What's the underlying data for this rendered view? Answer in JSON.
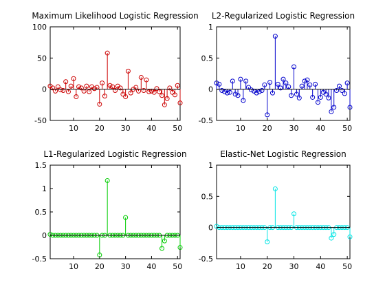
{
  "chart_data": [
    {
      "type": "stem",
      "title": "Maximum Likelihood Logistic Regression",
      "xlabel": "",
      "ylabel": "",
      "xlim": [
        1,
        51
      ],
      "ylim": [
        -50,
        100
      ],
      "xticks": [
        10,
        20,
        30,
        40,
        50
      ],
      "yticks": [
        -50,
        0,
        50,
        100
      ],
      "color": "#cc0000",
      "grid": false,
      "x": [
        1,
        2,
        3,
        4,
        5,
        6,
        7,
        8,
        9,
        10,
        11,
        12,
        13,
        14,
        15,
        16,
        17,
        18,
        19,
        20,
        21,
        22,
        23,
        24,
        25,
        26,
        27,
        28,
        29,
        30,
        31,
        32,
        33,
        34,
        35,
        36,
        37,
        38,
        39,
        40,
        41,
        42,
        43,
        44,
        45,
        46,
        47,
        48,
        49,
        50,
        51
      ],
      "values": [
        5,
        2,
        -3,
        4,
        -1,
        -2,
        12,
        -4,
        5,
        17,
        -12,
        4,
        2,
        -3,
        5,
        -4,
        4,
        1,
        3,
        -24,
        10,
        -11,
        58,
        6,
        4,
        -2,
        5,
        2,
        -8,
        -12,
        29,
        -6,
        0,
        3,
        -3,
        19,
        -2,
        15,
        -4,
        -3,
        -5,
        1,
        -4,
        -10,
        -25,
        -15,
        2,
        -5,
        -9,
        6,
        -22
      ]
    },
    {
      "type": "stem",
      "title": "L2-Regularized Logistic Regression",
      "xlabel": "",
      "ylabel": "",
      "xlim": [
        1,
        51
      ],
      "ylim": [
        -0.5,
        1
      ],
      "xticks": [
        10,
        20,
        30,
        40,
        50
      ],
      "yticks": [
        -0.5,
        0,
        0.5,
        1
      ],
      "color": "#0000cc",
      "grid": false,
      "x": [
        1,
        2,
        3,
        4,
        5,
        6,
        7,
        8,
        9,
        10,
        11,
        12,
        13,
        14,
        15,
        16,
        17,
        18,
        19,
        20,
        21,
        22,
        23,
        24,
        25,
        26,
        27,
        28,
        29,
        30,
        31,
        32,
        33,
        34,
        35,
        36,
        37,
        38,
        39,
        40,
        41,
        42,
        43,
        44,
        45,
        46,
        47,
        48,
        49,
        50,
        51
      ],
      "values": [
        0.1,
        0.08,
        -0.02,
        -0.04,
        -0.06,
        -0.05,
        0.13,
        -0.08,
        -0.1,
        0.16,
        -0.18,
        0.13,
        0.03,
        -0.01,
        -0.03,
        -0.06,
        -0.04,
        -0.02,
        0.07,
        -0.41,
        0.11,
        -0.06,
        0.85,
        0.08,
        0.02,
        0.16,
        0.1,
        0.04,
        -0.1,
        0.36,
        -0.08,
        -0.14,
        0.05,
        0.13,
        0.15,
        0.07,
        -0.13,
        0.08,
        -0.21,
        -0.13,
        -0.05,
        -0.08,
        -0.14,
        -0.36,
        -0.29,
        -0.02,
        0.05,
        -0.02,
        -0.07,
        0.1,
        -0.29
      ]
    },
    {
      "type": "stem",
      "title": "L1-Regularized Logistic Regression",
      "xlabel": "",
      "ylabel": "",
      "xlim": [
        1,
        51
      ],
      "ylim": [
        -0.5,
        1.5
      ],
      "xticks": [
        10,
        20,
        30,
        40,
        50
      ],
      "yticks": [
        -0.5,
        0,
        0.5,
        1,
        1.5
      ],
      "color": "#00cc00",
      "grid": false,
      "x": [
        1,
        2,
        3,
        4,
        5,
        6,
        7,
        8,
        9,
        10,
        11,
        12,
        13,
        14,
        15,
        16,
        17,
        18,
        19,
        20,
        21,
        22,
        23,
        24,
        25,
        26,
        27,
        28,
        29,
        30,
        31,
        32,
        33,
        34,
        35,
        36,
        37,
        38,
        39,
        40,
        41,
        42,
        43,
        44,
        45,
        46,
        47,
        48,
        49,
        50,
        51
      ],
      "values": [
        0.02,
        0,
        0,
        0,
        0,
        0,
        0,
        0,
        0,
        0,
        0,
        0,
        0,
        0,
        0,
        0,
        0,
        0,
        0,
        -0.42,
        0,
        0,
        1.17,
        0,
        0,
        0,
        0,
        0,
        0,
        0.38,
        0,
        0,
        0,
        0,
        0,
        0,
        0,
        0,
        0,
        0,
        0,
        0,
        0,
        -0.28,
        -0.12,
        0,
        0,
        0,
        0,
        0,
        -0.26
      ]
    },
    {
      "type": "stem",
      "title": "Elastic-Net Logistic Regression",
      "xlabel": "",
      "ylabel": "",
      "xlim": [
        1,
        51
      ],
      "ylim": [
        -0.5,
        1
      ],
      "xticks": [
        10,
        20,
        30,
        40,
        50
      ],
      "yticks": [
        -0.5,
        0,
        0.5,
        1
      ],
      "color": "#00e5e5",
      "grid": false,
      "x": [
        1,
        2,
        3,
        4,
        5,
        6,
        7,
        8,
        9,
        10,
        11,
        12,
        13,
        14,
        15,
        16,
        17,
        18,
        19,
        20,
        21,
        22,
        23,
        24,
        25,
        26,
        27,
        28,
        29,
        30,
        31,
        32,
        33,
        34,
        35,
        36,
        37,
        38,
        39,
        40,
        41,
        42,
        43,
        44,
        45,
        46,
        47,
        48,
        49,
        50,
        51
      ],
      "values": [
        0.02,
        0,
        0,
        0,
        0,
        0,
        0,
        0,
        0,
        0,
        0,
        0,
        0,
        0,
        0,
        0,
        0,
        0,
        0,
        -0.23,
        0,
        0,
        0.62,
        0,
        0,
        0,
        0,
        0,
        0,
        0.22,
        0,
        0,
        0,
        0,
        0,
        0,
        0,
        0,
        0,
        0,
        0,
        0,
        0,
        -0.17,
        -0.11,
        0,
        0,
        0,
        0,
        0,
        -0.15
      ]
    }
  ]
}
